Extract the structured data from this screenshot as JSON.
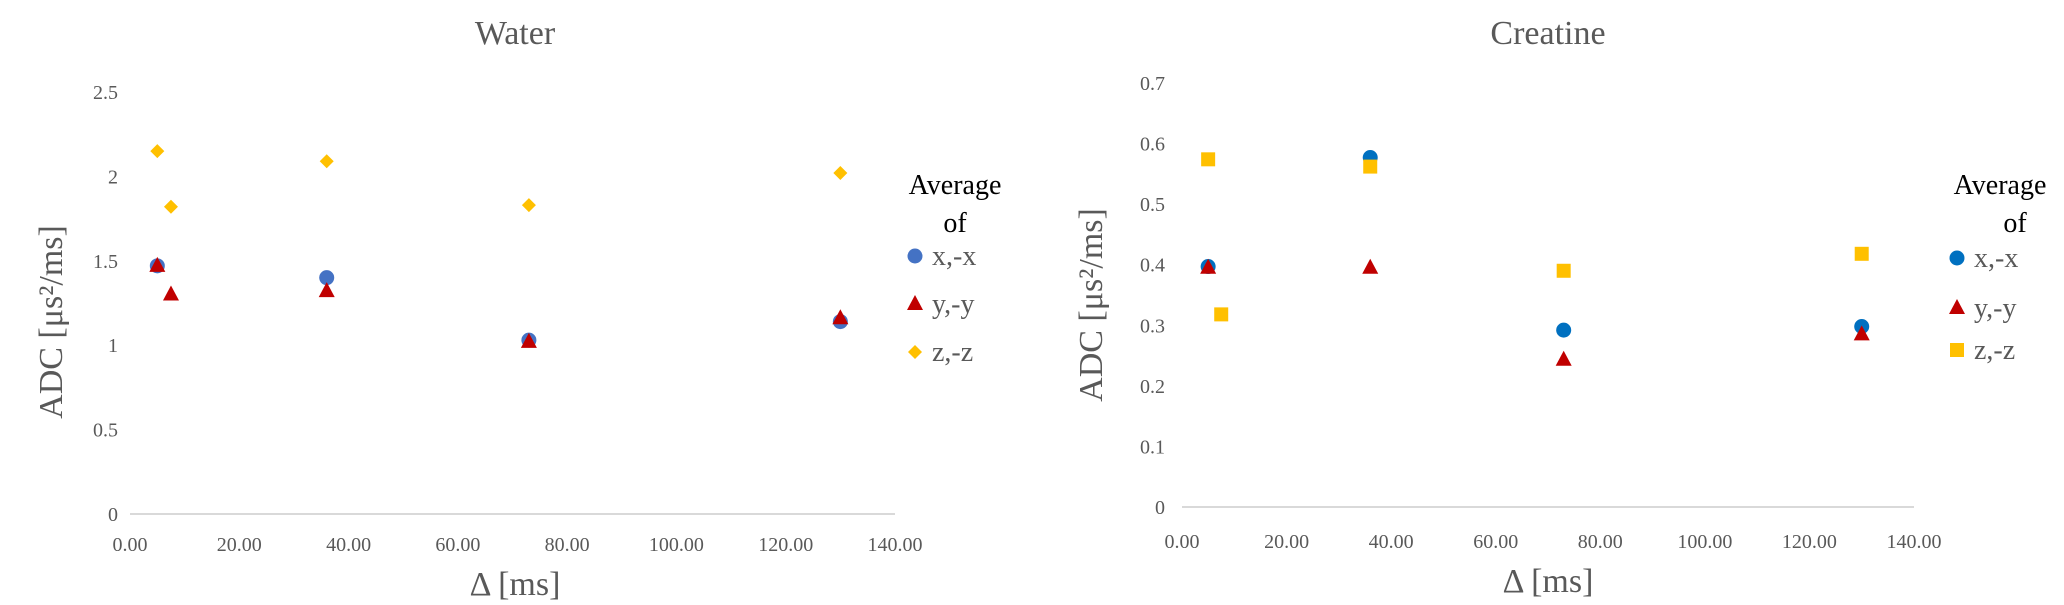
{
  "chart_data": [
    {
      "type": "scatter",
      "title": "Water",
      "xlabel": "Δ [ms]",
      "ylabel": "ADC [μs²/ms]",
      "xlim": [
        0,
        140
      ],
      "ylim": [
        0,
        2.5
      ],
      "xticks": [
        "0.00",
        "20.00",
        "40.00",
        "60.00",
        "80.00",
        "100.00",
        "120.00",
        "140.00"
      ],
      "yticks": [
        "0",
        "0.5",
        "1",
        "1.5",
        "2",
        "2.5"
      ],
      "legend": {
        "title_line1": "Average",
        "title_line2": "of",
        "placement": "right"
      },
      "series": [
        {
          "name": "x,-x",
          "marker": "circle",
          "color": "#4472c4",
          "points": [
            [
              5,
              1.47
            ],
            [
              36,
              1.4
            ],
            [
              73,
              1.03
            ],
            [
              130,
              1.14
            ]
          ]
        },
        {
          "name": "y,-y",
          "marker": "triangle",
          "color": "#c00000",
          "points": [
            [
              5,
              1.47
            ],
            [
              7.5,
              1.3
            ],
            [
              36,
              1.32
            ],
            [
              73,
              1.02
            ],
            [
              130,
              1.16
            ]
          ]
        },
        {
          "name": "z,-z",
          "marker": "diamond",
          "color": "#ffc000",
          "points": [
            [
              5,
              2.15
            ],
            [
              7.5,
              1.82
            ],
            [
              36,
              2.09
            ],
            [
              73,
              1.83
            ],
            [
              130,
              2.02
            ]
          ]
        }
      ]
    },
    {
      "type": "scatter",
      "title": "Creatine",
      "xlabel": "Δ [ms]",
      "ylabel": "ADC [μs²/ms]",
      "xlim": [
        0,
        140
      ],
      "ylim": [
        0,
        0.7
      ],
      "xticks": [
        "0.00",
        "20.00",
        "40.00",
        "60.00",
        "80.00",
        "100.00",
        "120.00",
        "140.00"
      ],
      "yticks": [
        "0",
        "0.1",
        "0.2",
        "0.3",
        "0.4",
        "0.5",
        "0.6",
        "0.7"
      ],
      "legend": {
        "title_line1": "Average",
        "title_line2": "of",
        "placement": "right"
      },
      "series": [
        {
          "name": "x,-x",
          "marker": "circle",
          "color": "#0070c0",
          "points": [
            [
              5,
              0.397
            ],
            [
              36,
              0.577
            ],
            [
              73,
              0.292
            ],
            [
              130,
              0.298
            ]
          ]
        },
        {
          "name": "y,-y",
          "marker": "triangle",
          "color": "#c00000",
          "points": [
            [
              5,
              0.395
            ],
            [
              36,
              0.395
            ],
            [
              73,
              0.243
            ],
            [
              130,
              0.285
            ]
          ]
        },
        {
          "name": "z,-z",
          "marker": "square",
          "color": "#ffc000",
          "points": [
            [
              5,
              0.574
            ],
            [
              7.5,
              0.318
            ],
            [
              36,
              0.562
            ],
            [
              73,
              0.39
            ],
            [
              130,
              0.418
            ]
          ]
        }
      ]
    }
  ]
}
